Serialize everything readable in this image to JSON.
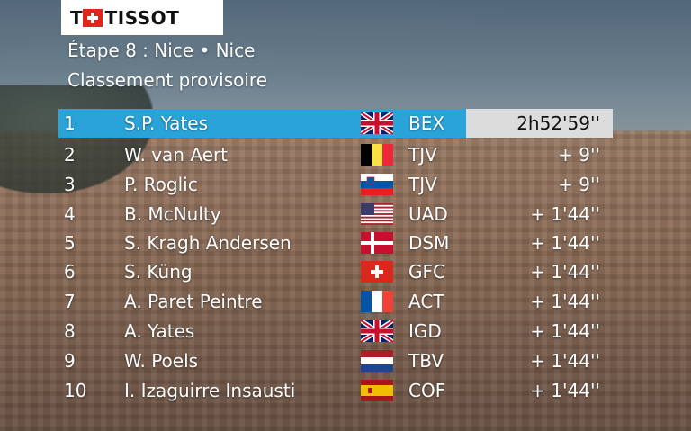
{
  "brand": {
    "prefix": "T",
    "name": "TISSOT"
  },
  "stage": {
    "label": "Étape 8 : Nice  •  Nice"
  },
  "subtitle": "Classement provisoire",
  "colors": {
    "highlight": "#2aa3d9",
    "time_box": "#dcdcdc"
  },
  "rows": [
    {
      "rank": "1",
      "name": "S.P. Yates",
      "flag": "gb-flag",
      "team": "BEX",
      "time": "2h52'59''"
    },
    {
      "rank": "2",
      "name": "W. van Aert",
      "flag": "be-flag",
      "team": "TJV",
      "time": "+  9''"
    },
    {
      "rank": "3",
      "name": "P. Roglic",
      "flag": "si-flag",
      "team": "TJV",
      "time": "+  9''"
    },
    {
      "rank": "4",
      "name": "B. McNulty",
      "flag": "us-flag",
      "team": "UAD",
      "time": "+ 1'44''"
    },
    {
      "rank": "5",
      "name": "S. Kragh Andersen",
      "flag": "dk-flag",
      "team": "DSM",
      "time": "+ 1'44''"
    },
    {
      "rank": "6",
      "name": "S. Küng",
      "flag": "ch-flag",
      "team": "GFC",
      "time": "+ 1'44''"
    },
    {
      "rank": "7",
      "name": "A. Paret Peintre",
      "flag": "fr-flag",
      "team": "ACT",
      "time": "+ 1'44''"
    },
    {
      "rank": "8",
      "name": "A. Yates",
      "flag": "gb-flag",
      "team": "IGD",
      "time": "+ 1'44''"
    },
    {
      "rank": "9",
      "name": "W. Poels",
      "flag": "nl-flag",
      "team": "TBV",
      "time": "+ 1'44''"
    },
    {
      "rank": "10",
      "name": "I. Izaguirre Insausti",
      "flag": "es-flag",
      "team": "COF",
      "time": "+ 1'44''"
    }
  ]
}
